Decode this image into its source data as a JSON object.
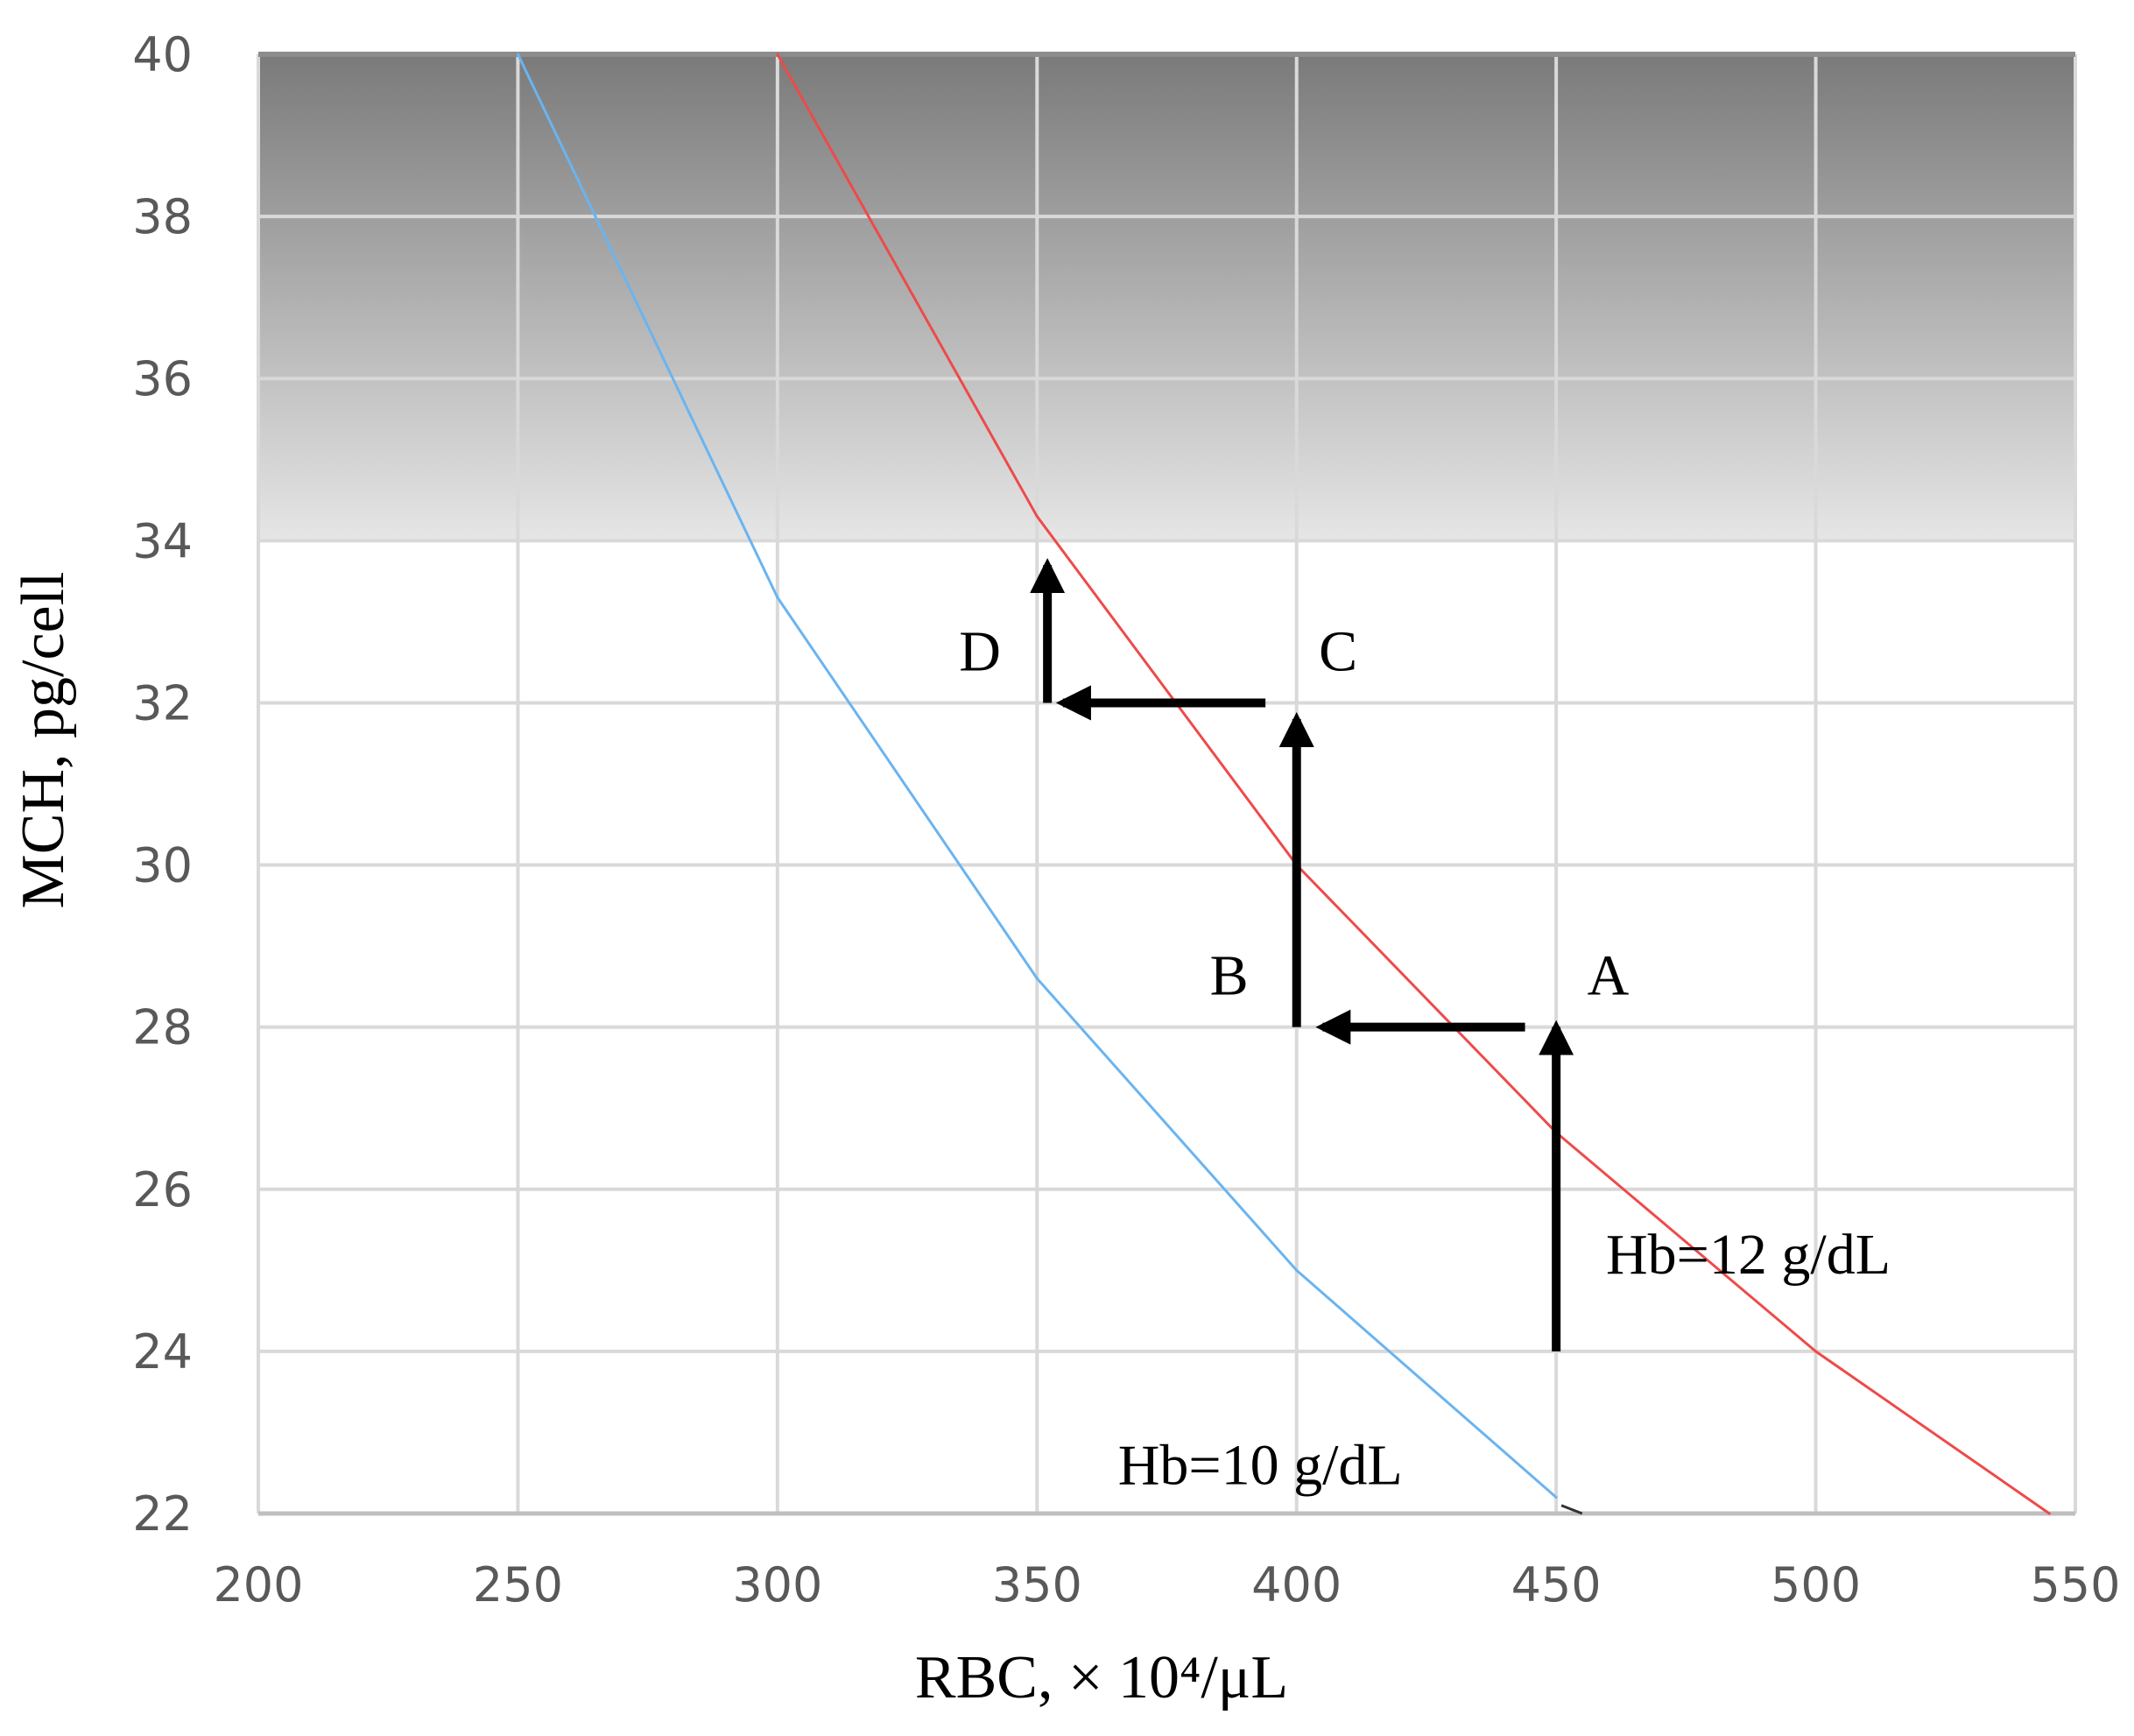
{
  "chart_data": {
    "type": "line",
    "title": "",
    "xlabel": "RBC, × 10⁴/μL",
    "ylabel": "MCH, pg/cell",
    "xlim": [
      200,
      550
    ],
    "ylim": [
      22,
      40
    ],
    "x_ticks": [
      "200",
      "250",
      "300",
      "350",
      "400",
      "450",
      "500",
      "550"
    ],
    "y_ticks": [
      "22",
      "24",
      "26",
      "28",
      "30",
      "32",
      "34",
      "36",
      "38",
      "40"
    ],
    "grid": true,
    "shaded_band": {
      "from": 34,
      "to": 40
    },
    "series": [
      {
        "label": "Hb=10 g/dL",
        "color": "#6ab4f0",
        "x": [
          250,
          300,
          350,
          400,
          450
        ],
        "y": [
          40.0,
          33.3,
          28.6,
          25.0,
          22.2
        ]
      },
      {
        "label": "Hb=12 g/dL",
        "color": "#ee4a4a",
        "x": [
          300,
          350,
          400,
          450,
          500,
          545
        ],
        "y": [
          40.0,
          34.3,
          30.0,
          26.7,
          24.0,
          22.0
        ]
      }
    ],
    "arrows": [
      {
        "from": [
          450,
          24
        ],
        "to": [
          450,
          28
        ]
      },
      {
        "from": [
          444,
          28
        ],
        "to": [
          405,
          28
        ]
      },
      {
        "from": [
          400,
          28
        ],
        "to": [
          400,
          31.8
        ]
      },
      {
        "from": [
          394,
          32
        ],
        "to": [
          355,
          32
        ]
      },
      {
        "from": [
          352,
          32
        ],
        "to": [
          352,
          33.7
        ]
      }
    ],
    "point_labels": [
      {
        "text": "A",
        "x": 460,
        "y": 28.4
      },
      {
        "text": "B",
        "x": 387,
        "y": 28.4
      },
      {
        "text": "C",
        "x": 408,
        "y": 32.4
      },
      {
        "text": "D",
        "x": 339,
        "y": 32.4
      }
    ]
  }
}
